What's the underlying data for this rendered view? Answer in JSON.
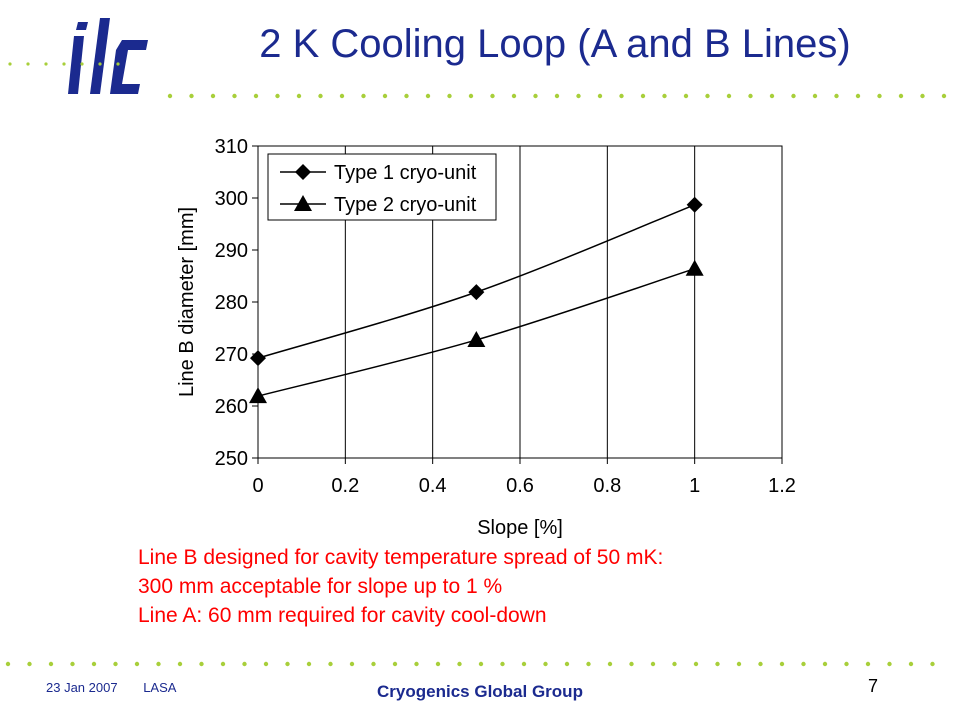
{
  "slide": {
    "title": "2 K Cooling Loop (A and B Lines)",
    "note_lines": [
      "Line B designed for cavity temperature spread of 50 mK:",
      "300 mm acceptable for slope up to 1 %",
      "Line A: 60 mm required for cavity cool-down"
    ],
    "footer_date": "23 Jan 2007",
    "footer_location": "LASA",
    "footer_group": "Cryogenics Global Group",
    "page_number": "7"
  },
  "colors": {
    "title": "#1b2a8f",
    "note": "#ff0000",
    "dots": "#a8cf3a",
    "logo": "#1b2a8f"
  },
  "chart_data": {
    "type": "line",
    "xlabel": "Slope [%]",
    "ylabel": "Line B diameter [mm]",
    "xlim": [
      0,
      1.2
    ],
    "ylim": [
      250,
      310
    ],
    "xticks": [
      "0",
      "0.2",
      "0.4",
      "0.6",
      "0.8",
      "1",
      "1.2"
    ],
    "yticks": [
      "250",
      "260",
      "270",
      "280",
      "290",
      "300",
      "310"
    ],
    "x": [
      0,
      0.5,
      1
    ],
    "series": [
      {
        "name": "Type 1 cryo-unit",
        "marker": "diamond",
        "values": [
          269.2,
          281.9,
          298.7
        ]
      },
      {
        "name": "Type 2 cryo-unit",
        "marker": "triangle",
        "values": [
          261.9,
          272.7,
          286.4
        ]
      }
    ],
    "grid": "vertical",
    "legend_position": "top-left"
  }
}
